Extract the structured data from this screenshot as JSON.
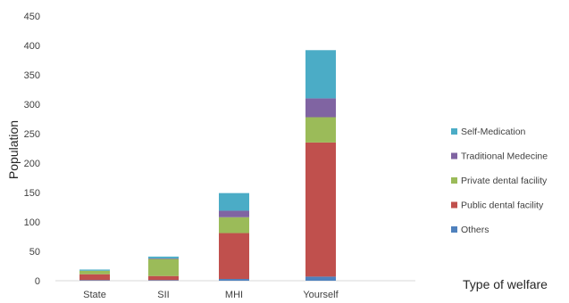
{
  "chart_data": {
    "type": "bar",
    "stacked": true,
    "categories": [
      "State",
      "SII",
      "MHI",
      "Yourself"
    ],
    "series": [
      {
        "name": "Others",
        "color": "#4f81bd",
        "values": [
          1,
          1,
          3,
          7
        ]
      },
      {
        "name": "Public dental facility",
        "color": "#c0504d",
        "values": [
          10,
          7,
          78,
          228
        ]
      },
      {
        "name": "Private dental facility",
        "color": "#9bbb59",
        "values": [
          6,
          29,
          27,
          43
        ]
      },
      {
        "name": "Traditional Medecine",
        "color": "#8064a2",
        "values": [
          0,
          1,
          11,
          32
        ]
      },
      {
        "name": "Self-Medication",
        "color": "#4bacc6",
        "values": [
          2,
          3,
          30,
          82
        ]
      }
    ],
    "xlabel": "Type of  welfare",
    "ylabel": "Population",
    "ylim": [
      0,
      450
    ],
    "yticks": [
      0,
      50,
      100,
      150,
      200,
      250,
      300,
      350,
      400,
      450
    ],
    "grid": false,
    "legend": "right"
  }
}
